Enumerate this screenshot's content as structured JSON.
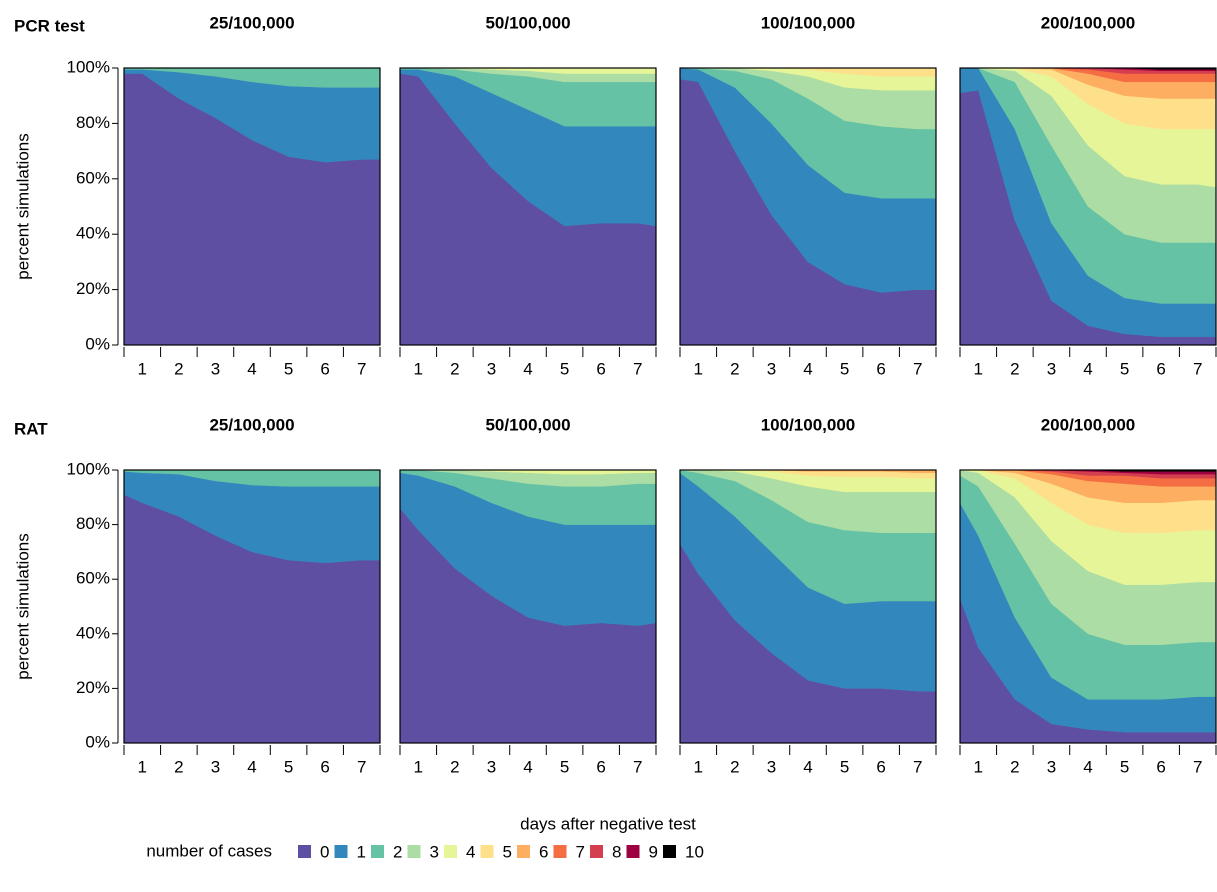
{
  "row_labels": [
    "PCR test",
    "RAT"
  ],
  "x_label": "days after negative test",
  "legend_title": "number of cases",
  "chart_data": [
    {
      "type": "area",
      "stacked": true,
      "title": "25/100,000",
      "x": [
        0.5,
        1,
        2,
        3,
        4,
        5,
        6,
        7,
        7.5
      ],
      "xlim": [
        0.5,
        7.5
      ],
      "xticks": [
        1,
        2,
        3,
        4,
        5,
        6,
        7
      ],
      "xtick_marks": [
        0.5,
        1.5,
        2.5,
        3.5,
        4.5,
        5.5,
        6.5,
        7.5
      ],
      "ylim": [
        0,
        100
      ],
      "yticks": [
        {
          "value": 0,
          "label": "0%"
        },
        {
          "value": 20,
          "label": "20%"
        },
        {
          "value": 40,
          "label": "40%"
        },
        {
          "value": 60,
          "label": "60%"
        },
        {
          "value": 80,
          "label": "80%"
        },
        {
          "value": 100,
          "label": "100%"
        }
      ],
      "ylabel": "percent simulations",
      "series": [
        {
          "name": "0",
          "color": "#5E4FA2",
          "values": [
            98,
            98,
            89,
            82,
            74,
            68,
            66,
            67,
            67
          ]
        },
        {
          "name": "1",
          "color": "#3288BD",
          "values": [
            1.5,
            1.5,
            9.5,
            15,
            21,
            25.5,
            27,
            26,
            26
          ]
        },
        {
          "name": "2",
          "color": "#66C2A5",
          "values": [
            0.5,
            0.5,
            1.5,
            3,
            5,
            6.5,
            7,
            7,
            7
          ]
        }
      ]
    },
    {
      "type": "area",
      "stacked": true,
      "title": "50/100,000",
      "x": [
        0.5,
        1,
        2,
        3,
        4,
        5,
        6,
        7,
        7.5
      ],
      "xlim": [
        0.5,
        7.5
      ],
      "xticks": [
        1,
        2,
        3,
        4,
        5,
        6,
        7
      ],
      "xtick_marks": [
        0.5,
        1.5,
        2.5,
        3.5,
        4.5,
        5.5,
        6.5,
        7.5
      ],
      "ylim": [
        0,
        100
      ],
      "series": [
        {
          "name": "0",
          "color": "#5E4FA2",
          "values": [
            98,
            97,
            80,
            64,
            52,
            43,
            44,
            44,
            43
          ]
        },
        {
          "name": "1",
          "color": "#3288BD",
          "values": [
            1.5,
            2.5,
            17,
            27,
            33,
            36,
            35,
            35,
            36
          ]
        },
        {
          "name": "2",
          "color": "#66C2A5",
          "values": [
            0.5,
            0.5,
            2.5,
            7,
            12,
            16,
            16,
            16,
            16
          ]
        },
        {
          "name": "3",
          "color": "#ABDDA4",
          "values": [
            0,
            0,
            0.5,
            1.5,
            2,
            3,
            3,
            3,
            3
          ]
        },
        {
          "name": "4",
          "color": "#E6F598",
          "values": [
            0,
            0,
            0,
            0.5,
            1,
            2,
            2,
            2,
            2
          ]
        }
      ]
    },
    {
      "type": "area",
      "stacked": true,
      "title": "100/100,000",
      "x": [
        0.5,
        1,
        2,
        3,
        4,
        5,
        6,
        7,
        7.5
      ],
      "xlim": [
        0.5,
        7.5
      ],
      "xticks": [
        1,
        2,
        3,
        4,
        5,
        6,
        7
      ],
      "xtick_marks": [
        0.5,
        1.5,
        2.5,
        3.5,
        4.5,
        5.5,
        6.5,
        7.5
      ],
      "ylim": [
        0,
        100
      ],
      "series": [
        {
          "name": "0",
          "color": "#5E4FA2",
          "values": [
            96,
            95,
            70,
            47,
            30,
            22,
            19,
            20,
            20
          ]
        },
        {
          "name": "1",
          "color": "#3288BD",
          "values": [
            4,
            4.5,
            23,
            33,
            35,
            33,
            34,
            33,
            33
          ]
        },
        {
          "name": "2",
          "color": "#66C2A5",
          "values": [
            0,
            0.5,
            6,
            16,
            24,
            26,
            26,
            25,
            25
          ]
        },
        {
          "name": "3",
          "color": "#ABDDA4",
          "values": [
            0,
            0,
            1,
            3,
            8,
            12,
            13,
            14,
            14
          ]
        },
        {
          "name": "4",
          "color": "#E6F598",
          "values": [
            0,
            0,
            0,
            1,
            2.5,
            5,
            5,
            5,
            5
          ]
        },
        {
          "name": "5",
          "color": "#FEE08B",
          "values": [
            0,
            0,
            0,
            0,
            0.5,
            2,
            3,
            3,
            3
          ]
        }
      ]
    },
    {
      "type": "area",
      "stacked": true,
      "title": "200/100,000",
      "x": [
        0.5,
        1,
        2,
        3,
        4,
        5,
        6,
        7,
        7.5
      ],
      "xlim": [
        0.5,
        7.5
      ],
      "xticks": [
        1,
        2,
        3,
        4,
        5,
        6,
        7
      ],
      "xtick_marks": [
        0.5,
        1.5,
        2.5,
        3.5,
        4.5,
        5.5,
        6.5,
        7.5
      ],
      "ylim": [
        0,
        100
      ],
      "series": [
        {
          "name": "0",
          "color": "#5E4FA2",
          "values": [
            91,
            92,
            45,
            16,
            7,
            4,
            3,
            3,
            3
          ]
        },
        {
          "name": "1",
          "color": "#3288BD",
          "values": [
            9,
            8,
            33,
            28,
            18,
            13,
            12,
            12,
            12
          ]
        },
        {
          "name": "2",
          "color": "#66C2A5",
          "values": [
            0,
            0,
            17,
            28,
            25,
            23,
            22,
            22,
            22
          ]
        },
        {
          "name": "3",
          "color": "#ABDDA4",
          "values": [
            0,
            0,
            4,
            18,
            22,
            21,
            21,
            21,
            20
          ]
        },
        {
          "name": "4",
          "color": "#E6F598",
          "values": [
            0,
            0,
            1,
            7,
            15,
            19,
            20,
            20,
            21
          ]
        },
        {
          "name": "5",
          "color": "#FEE08B",
          "values": [
            0,
            0,
            0,
            2.5,
            7,
            10,
            11,
            11,
            11
          ]
        },
        {
          "name": "6",
          "color": "#FDAE61",
          "values": [
            0,
            0,
            0,
            0.5,
            4,
            5,
            6,
            6,
            6
          ]
        },
        {
          "name": "7",
          "color": "#F46D43",
          "values": [
            0,
            0,
            0,
            0,
            1.5,
            3,
            3,
            3,
            3
          ]
        },
        {
          "name": "8",
          "color": "#D53E4F",
          "values": [
            0,
            0,
            0,
            0,
            0.5,
            1.5,
            1,
            1,
            1
          ]
        },
        {
          "name": "9",
          "color": "#9E0142",
          "values": [
            0,
            0,
            0,
            0,
            0,
            0.5,
            0.5,
            0.5,
            0.5
          ]
        },
        {
          "name": "10",
          "color": "#000000",
          "values": [
            0,
            0,
            0,
            0,
            0,
            0,
            0.5,
            0.5,
            0.5
          ]
        }
      ]
    },
    {
      "type": "area",
      "stacked": true,
      "title": "25/100,000",
      "x": [
        0.5,
        1,
        2,
        3,
        4,
        5,
        6,
        7,
        7.5
      ],
      "xlim": [
        0.5,
        7.5
      ],
      "xticks": [
        1,
        2,
        3,
        4,
        5,
        6,
        7
      ],
      "xtick_marks": [
        0.5,
        1.5,
        2.5,
        3.5,
        4.5,
        5.5,
        6.5,
        7.5
      ],
      "ylim": [
        0,
        100
      ],
      "yticks": [
        {
          "value": 0,
          "label": "0%"
        },
        {
          "value": 20,
          "label": "20%"
        },
        {
          "value": 40,
          "label": "40%"
        },
        {
          "value": 60,
          "label": "60%"
        },
        {
          "value": 80,
          "label": "80%"
        },
        {
          "value": 100,
          "label": "100%"
        }
      ],
      "ylabel": "percent simulations",
      "series": [
        {
          "name": "0",
          "color": "#5E4FA2",
          "values": [
            91,
            88,
            83,
            76,
            70,
            67,
            66,
            67,
            67
          ]
        },
        {
          "name": "1",
          "color": "#3288BD",
          "values": [
            8.5,
            11,
            15.5,
            20,
            24.5,
            27,
            28,
            27,
            27
          ]
        },
        {
          "name": "2",
          "color": "#66C2A5",
          "values": [
            0.5,
            1,
            1.5,
            4,
            5.5,
            6,
            6,
            6,
            6
          ]
        }
      ]
    },
    {
      "type": "area",
      "stacked": true,
      "title": "50/100,000",
      "x": [
        0.5,
        1,
        2,
        3,
        4,
        5,
        6,
        7,
        7.5
      ],
      "xlim": [
        0.5,
        7.5
      ],
      "xticks": [
        1,
        2,
        3,
        4,
        5,
        6,
        7
      ],
      "xtick_marks": [
        0.5,
        1.5,
        2.5,
        3.5,
        4.5,
        5.5,
        6.5,
        7.5
      ],
      "ylim": [
        0,
        100
      ],
      "series": [
        {
          "name": "0",
          "color": "#5E4FA2",
          "values": [
            86,
            78,
            64,
            54,
            46,
            43,
            44,
            43,
            44
          ]
        },
        {
          "name": "1",
          "color": "#3288BD",
          "values": [
            13,
            20,
            30,
            34,
            37,
            37,
            36,
            37,
            36
          ]
        },
        {
          "name": "2",
          "color": "#66C2A5",
          "values": [
            1,
            2,
            5,
            9,
            12,
            14,
            14,
            15,
            15
          ]
        },
        {
          "name": "3",
          "color": "#ABDDA4",
          "values": [
            0,
            0,
            1,
            2.5,
            4,
            4.5,
            4.5,
            4,
            4
          ]
        },
        {
          "name": "4",
          "color": "#E6F598",
          "values": [
            0,
            0,
            0,
            0.5,
            1,
            1.5,
            1.5,
            1,
            1
          ]
        }
      ]
    },
    {
      "type": "area",
      "stacked": true,
      "title": "100/100,000",
      "x": [
        0.5,
        1,
        2,
        3,
        4,
        5,
        6,
        7,
        7.5
      ],
      "xlim": [
        0.5,
        7.5
      ],
      "xticks": [
        1,
        2,
        3,
        4,
        5,
        6,
        7
      ],
      "xtick_marks": [
        0.5,
        1.5,
        2.5,
        3.5,
        4.5,
        5.5,
        6.5,
        7.5
      ],
      "ylim": [
        0,
        100
      ],
      "series": [
        {
          "name": "0",
          "color": "#5E4FA2",
          "values": [
            73,
            62,
            45,
            33,
            23,
            20,
            20,
            19,
            19
          ]
        },
        {
          "name": "1",
          "color": "#3288BD",
          "values": [
            26,
            32,
            38,
            37,
            34,
            31,
            32,
            33,
            33
          ]
        },
        {
          "name": "2",
          "color": "#66C2A5",
          "values": [
            1,
            5,
            13,
            19,
            24,
            27,
            25,
            25,
            25
          ]
        },
        {
          "name": "3",
          "color": "#ABDDA4",
          "values": [
            0,
            1,
            3.5,
            8,
            13,
            14,
            15,
            15,
            15
          ]
        },
        {
          "name": "4",
          "color": "#E6F598",
          "values": [
            0,
            0,
            0.5,
            2.5,
            4,
            5.5,
            5.5,
            5,
            5
          ]
        },
        {
          "name": "5",
          "color": "#FEE08B",
          "values": [
            0,
            0,
            0,
            0.5,
            1.5,
            2,
            2,
            2,
            2
          ]
        },
        {
          "name": "6",
          "color": "#FDAE61",
          "values": [
            0,
            0,
            0,
            0,
            0.5,
            0.5,
            0.5,
            1,
            1
          ]
        }
      ]
    },
    {
      "type": "area",
      "stacked": true,
      "title": "200/100,000",
      "x": [
        0.5,
        1,
        2,
        3,
        4,
        5,
        6,
        7,
        7.5
      ],
      "xlim": [
        0.5,
        7.5
      ],
      "xticks": [
        1,
        2,
        3,
        4,
        5,
        6,
        7
      ],
      "xtick_marks": [
        0.5,
        1.5,
        2.5,
        3.5,
        4.5,
        5.5,
        6.5,
        7.5
      ],
      "ylim": [
        0,
        100
      ],
      "series": [
        {
          "name": "0",
          "color": "#5E4FA2",
          "values": [
            53,
            35,
            16,
            7,
            5,
            4,
            4,
            4,
            4
          ]
        },
        {
          "name": "1",
          "color": "#3288BD",
          "values": [
            35,
            41,
            30,
            17,
            11,
            12,
            12,
            13,
            13
          ]
        },
        {
          "name": "2",
          "color": "#66C2A5",
          "values": [
            10,
            18,
            27,
            27,
            24,
            20,
            20,
            20,
            20
          ]
        },
        {
          "name": "3",
          "color": "#ABDDA4",
          "values": [
            2,
            5,
            17,
            23,
            23,
            22,
            22,
            22,
            22
          ]
        },
        {
          "name": "4",
          "color": "#E6F598",
          "values": [
            0,
            1,
            7,
            14,
            17,
            19,
            19,
            19,
            19
          ]
        },
        {
          "name": "5",
          "color": "#FEE08B",
          "values": [
            0,
            0,
            2,
            7,
            10,
            11,
            11,
            11,
            11
          ]
        },
        {
          "name": "6",
          "color": "#FDAE61",
          "values": [
            0,
            0,
            1,
            3.5,
            6,
            7,
            6,
            5,
            5
          ]
        },
        {
          "name": "7",
          "color": "#F46D43",
          "values": [
            0,
            0,
            0,
            1,
            2,
            3,
            3,
            3,
            3
          ]
        },
        {
          "name": "8",
          "color": "#D53E4F",
          "values": [
            0,
            0,
            0,
            0.5,
            1.5,
            1,
            1.5,
            1.5,
            1.5
          ]
        },
        {
          "name": "9",
          "color": "#9E0142",
          "values": [
            0,
            0,
            0,
            0,
            0.5,
            0.5,
            1,
            1,
            1
          ]
        },
        {
          "name": "10",
          "color": "#000000",
          "values": [
            0,
            0,
            0,
            0,
            0,
            0.5,
            0.5,
            0.5,
            0.5
          ]
        }
      ]
    }
  ]
}
